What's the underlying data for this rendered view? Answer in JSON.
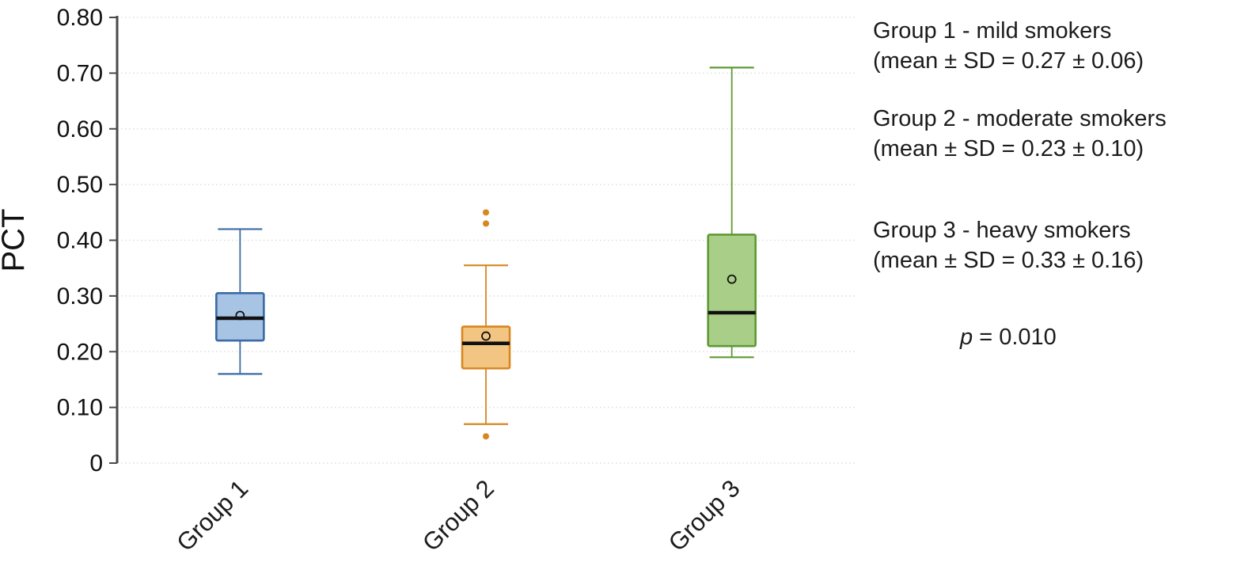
{
  "chart_data": {
    "type": "boxplot",
    "title": "",
    "xlabel": "",
    "ylabel": "PCT",
    "ylim": [
      0,
      0.8
    ],
    "yticks": [
      0,
      0.1,
      0.2,
      0.3,
      0.4,
      0.5,
      0.6,
      0.7,
      0.8
    ],
    "ytick_labels": [
      "0",
      "0.10",
      "0.20",
      "0.30",
      "0.40",
      "0.50",
      "0.60",
      "0.70",
      "0.80"
    ],
    "grid": "dotted-horizontal",
    "categories": [
      "Group 1",
      "Group 2",
      "Group 3"
    ],
    "series": [
      {
        "name": "Group 1",
        "whisker_low": 0.16,
        "q1": 0.22,
        "median": 0.26,
        "q3": 0.305,
        "whisker_high": 0.42,
        "mean": 0.265,
        "outliers": [],
        "stroke_color": "#3B6AA5",
        "fill_color": "#A8C4E5"
      },
      {
        "name": "Group 2",
        "whisker_low": 0.07,
        "q1": 0.17,
        "median": 0.215,
        "q3": 0.245,
        "median_color": "#111111",
        "whisker_high": 0.355,
        "mean": 0.228,
        "outliers": [
          0.45,
          0.43,
          0.048
        ],
        "stroke_color": "#D8861F",
        "fill_color": "#F3C582"
      },
      {
        "name": "Group 3",
        "whisker_low": 0.19,
        "q1": 0.21,
        "median": 0.27,
        "q3": 0.41,
        "whisker_high": 0.71,
        "mean": 0.33,
        "outliers": [],
        "stroke_color": "#5E9A34",
        "fill_color": "#A9CE87"
      }
    ],
    "median_line_color": "#111111",
    "mean_marker": "open-circle",
    "axis_color": "#4a4a4a",
    "grid_color": "#dedede"
  },
  "legend": {
    "entries": [
      {
        "title": "Group 1 - mild smokers",
        "subtitle": "(mean ± SD = 0.27 ± 0.06)"
      },
      {
        "title": "Group 2 - moderate smokers",
        "subtitle": "(mean ± SD = 0.23 ± 0.10)"
      },
      {
        "title": "Group 3 - heavy smokers",
        "subtitle": "(mean ± SD = 0.33 ± 0.16)"
      }
    ],
    "p_italic": "p",
    "p_rest": " = 0.010"
  }
}
